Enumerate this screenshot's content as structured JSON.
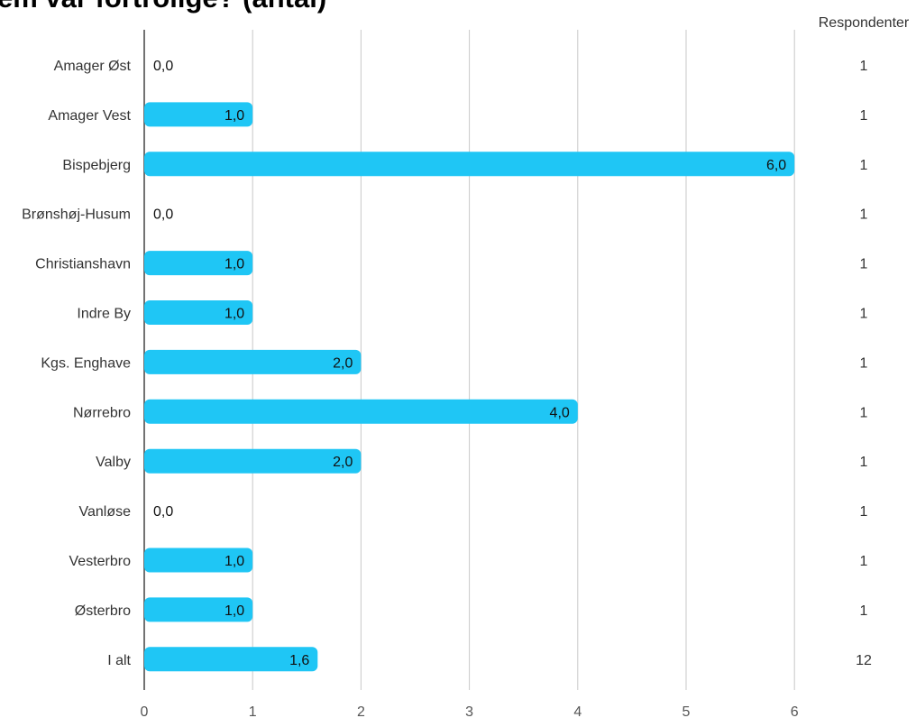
{
  "title": "em var fortrolige? (antal)",
  "respondents_header": "Respondenter",
  "colors": {
    "bar": "#1fc6f5",
    "grid": "#c8c8c8",
    "axis": "#444444"
  },
  "chart_data": {
    "type": "bar",
    "orientation": "horizontal",
    "title": "em var fortrolige? (antal)",
    "categories": [
      "Amager Øst",
      "Amager Vest",
      "Bispebjerg",
      "Brønshøj-Husum",
      "Christianshavn",
      "Indre By",
      "Kgs. Enghave",
      "Nørrebro",
      "Valby",
      "Vanløse",
      "Vesterbro",
      "Østerbro",
      "I alt"
    ],
    "values": [
      0,
      1,
      6,
      0,
      1,
      1,
      2,
      4,
      2,
      0,
      1,
      1,
      1.6
    ],
    "value_labels": [
      "0,0",
      "1,0",
      "6,0",
      "0,0",
      "1,0",
      "1,0",
      "2,0",
      "4,0",
      "2,0",
      "0,0",
      "1,0",
      "1,0",
      "1,6"
    ],
    "respondents": [
      "1",
      "1",
      "1",
      "1",
      "1",
      "1",
      "1",
      "1",
      "1",
      "1",
      "1",
      "1",
      "12"
    ],
    "xticks": [
      "0",
      "1",
      "2",
      "3",
      "4",
      "5",
      "6"
    ],
    "xlim": [
      0,
      6
    ],
    "grid": true
  }
}
